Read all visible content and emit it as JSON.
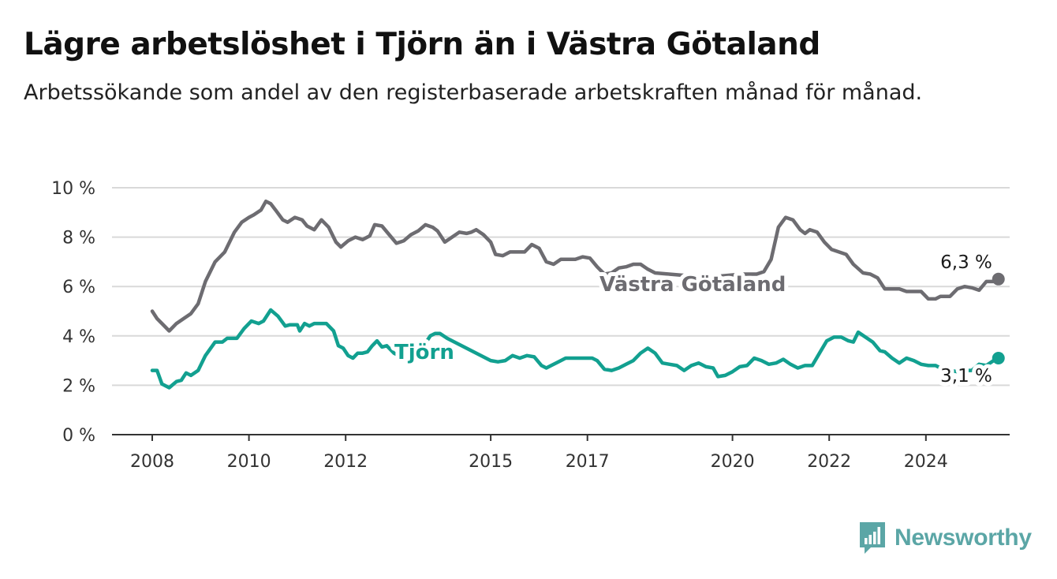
{
  "title": "Lägre arbetslöshet i Tjörn än i Västra Götaland",
  "subtitle": "Arbetssökande som andel av den registerbaserade arbetskraften månad för månad.",
  "brand": {
    "name": "Newsworthy",
    "icon": "newsworthy-logo-icon",
    "color": "#5ba6a6"
  },
  "colors": {
    "vastra_gotaland": "#6d6c71",
    "tjorn": "#12a090",
    "grid": "#d9d9d9",
    "axis": "#333333"
  },
  "chart_data": {
    "type": "line",
    "title": "Lägre arbetslöshet i Tjörn än i Västra Götaland",
    "subtitle": "Arbetssökande som andel av den registerbaserade arbetskraften månad för månad.",
    "xlabel": "",
    "ylabel": "",
    "y_unit": "%",
    "ylim": [
      0,
      10
    ],
    "y_ticks": [
      0,
      2,
      4,
      6,
      8,
      10
    ],
    "y_tick_labels": [
      "0 %",
      "2 %",
      "4 %",
      "6 %",
      "8 %",
      "10 %"
    ],
    "x_ticks": [
      2008,
      2010,
      2012,
      2015,
      2017,
      2020,
      2022,
      2024
    ],
    "x_tick_labels": [
      "2008",
      "2010",
      "2012",
      "2015",
      "2017",
      "2020",
      "2022",
      "2024"
    ],
    "grid": true,
    "legend": "direct labels on lines",
    "series": [
      {
        "name": "Västra Götaland",
        "color": "#6d6c71",
        "end_label": "6,3 %",
        "points": [
          [
            2008.0,
            5.0
          ],
          [
            2008.1,
            4.7
          ],
          [
            2008.2,
            4.5
          ],
          [
            2008.35,
            4.2
          ],
          [
            2008.5,
            4.5
          ],
          [
            2008.65,
            4.7
          ],
          [
            2008.8,
            4.9
          ],
          [
            2008.95,
            5.3
          ],
          [
            2009.1,
            6.2
          ],
          [
            2009.3,
            7.0
          ],
          [
            2009.5,
            7.4
          ],
          [
            2009.7,
            8.2
          ],
          [
            2009.85,
            8.6
          ],
          [
            2010.0,
            8.8
          ],
          [
            2010.1,
            8.9
          ],
          [
            2010.25,
            9.1
          ],
          [
            2010.35,
            9.45
          ],
          [
            2010.45,
            9.35
          ],
          [
            2010.55,
            9.1
          ],
          [
            2010.7,
            8.7
          ],
          [
            2010.8,
            8.6
          ],
          [
            2010.95,
            8.8
          ],
          [
            2011.1,
            8.7
          ],
          [
            2011.2,
            8.45
          ],
          [
            2011.35,
            8.3
          ],
          [
            2011.5,
            8.7
          ],
          [
            2011.65,
            8.4
          ],
          [
            2011.8,
            7.8
          ],
          [
            2011.9,
            7.6
          ],
          [
            2012.05,
            7.85
          ],
          [
            2012.2,
            8.0
          ],
          [
            2012.35,
            7.9
          ],
          [
            2012.5,
            8.05
          ],
          [
            2012.6,
            8.5
          ],
          [
            2012.75,
            8.45
          ],
          [
            2012.9,
            8.1
          ],
          [
            2013.05,
            7.75
          ],
          [
            2013.2,
            7.85
          ],
          [
            2013.35,
            8.1
          ],
          [
            2013.5,
            8.25
          ],
          [
            2013.65,
            8.5
          ],
          [
            2013.8,
            8.4
          ],
          [
            2013.9,
            8.25
          ],
          [
            2014.05,
            7.8
          ],
          [
            2014.2,
            8.0
          ],
          [
            2014.35,
            8.2
          ],
          [
            2014.5,
            8.15
          ],
          [
            2014.6,
            8.2
          ],
          [
            2014.7,
            8.3
          ],
          [
            2014.85,
            8.1
          ],
          [
            2015.0,
            7.8
          ],
          [
            2015.1,
            7.3
          ],
          [
            2015.25,
            7.25
          ],
          [
            2015.4,
            7.4
          ],
          [
            2015.55,
            7.4
          ],
          [
            2015.7,
            7.4
          ],
          [
            2015.85,
            7.7
          ],
          [
            2016.0,
            7.55
          ],
          [
            2016.15,
            7.0
          ],
          [
            2016.3,
            6.9
          ],
          [
            2016.45,
            7.1
          ],
          [
            2016.6,
            7.1
          ],
          [
            2016.75,
            7.1
          ],
          [
            2016.9,
            7.2
          ],
          [
            2017.05,
            7.15
          ],
          [
            2017.2,
            6.8
          ],
          [
            2017.35,
            6.5
          ],
          [
            2017.5,
            6.55
          ],
          [
            2017.65,
            6.75
          ],
          [
            2017.8,
            6.8
          ],
          [
            2017.95,
            6.9
          ],
          [
            2018.1,
            6.9
          ],
          [
            2018.25,
            6.7
          ],
          [
            2018.4,
            6.55
          ],
          [
            2019.0,
            6.45
          ],
          [
            2019.6,
            6.4
          ],
          [
            2020.2,
            6.5
          ],
          [
            2020.5,
            6.5
          ],
          [
            2020.65,
            6.6
          ],
          [
            2020.8,
            7.1
          ],
          [
            2020.95,
            8.4
          ],
          [
            2021.1,
            8.8
          ],
          [
            2021.25,
            8.7
          ],
          [
            2021.4,
            8.3
          ],
          [
            2021.5,
            8.15
          ],
          [
            2021.6,
            8.3
          ],
          [
            2021.75,
            8.2
          ],
          [
            2021.9,
            7.8
          ],
          [
            2022.05,
            7.5
          ],
          [
            2022.2,
            7.4
          ],
          [
            2022.35,
            7.3
          ],
          [
            2022.5,
            6.9
          ],
          [
            2022.7,
            6.55
          ],
          [
            2022.85,
            6.5
          ],
          [
            2023.0,
            6.35
          ],
          [
            2023.15,
            5.9
          ],
          [
            2023.3,
            5.9
          ],
          [
            2023.45,
            5.9
          ],
          [
            2023.6,
            5.8
          ],
          [
            2023.75,
            5.8
          ],
          [
            2023.9,
            5.8
          ],
          [
            2024.05,
            5.5
          ],
          [
            2024.2,
            5.5
          ],
          [
            2024.3,
            5.6
          ],
          [
            2024.5,
            5.6
          ],
          [
            2024.65,
            5.9
          ],
          [
            2024.8,
            6.0
          ],
          [
            2024.95,
            5.95
          ],
          [
            2025.1,
            5.85
          ],
          [
            2025.25,
            6.2
          ],
          [
            2025.4,
            6.2
          ],
          [
            2025.5,
            6.3
          ]
        ]
      },
      {
        "name": "Tjörn",
        "color": "#12a090",
        "end_label": "3,1 %",
        "points": [
          [
            2008.0,
            2.6
          ],
          [
            2008.1,
            2.6
          ],
          [
            2008.2,
            2.05
          ],
          [
            2008.35,
            1.9
          ],
          [
            2008.5,
            2.15
          ],
          [
            2008.6,
            2.2
          ],
          [
            2008.7,
            2.5
          ],
          [
            2008.8,
            2.4
          ],
          [
            2008.95,
            2.6
          ],
          [
            2009.1,
            3.2
          ],
          [
            2009.3,
            3.75
          ],
          [
            2009.45,
            3.75
          ],
          [
            2009.55,
            3.9
          ],
          [
            2009.75,
            3.9
          ],
          [
            2009.9,
            4.3
          ],
          [
            2010.05,
            4.6
          ],
          [
            2010.2,
            4.5
          ],
          [
            2010.3,
            4.6
          ],
          [
            2010.45,
            5.05
          ],
          [
            2010.6,
            4.8
          ],
          [
            2010.75,
            4.4
          ],
          [
            2010.85,
            4.45
          ],
          [
            2011.0,
            4.45
          ],
          [
            2011.05,
            4.2
          ],
          [
            2011.15,
            4.5
          ],
          [
            2011.25,
            4.4
          ],
          [
            2011.35,
            4.5
          ],
          [
            2011.5,
            4.5
          ],
          [
            2011.6,
            4.5
          ],
          [
            2011.75,
            4.2
          ],
          [
            2011.85,
            3.6
          ],
          [
            2011.95,
            3.5
          ],
          [
            2012.05,
            3.2
          ],
          [
            2012.15,
            3.1
          ],
          [
            2012.25,
            3.3
          ],
          [
            2012.35,
            3.3
          ],
          [
            2012.45,
            3.35
          ],
          [
            2012.55,
            3.6
          ],
          [
            2012.65,
            3.8
          ],
          [
            2012.75,
            3.55
          ],
          [
            2012.85,
            3.6
          ],
          [
            2013.0,
            3.3
          ],
          [
            2013.1,
            3.2
          ],
          [
            2013.2,
            3.4
          ],
          [
            2013.35,
            3.15
          ],
          [
            2013.5,
            3.5
          ],
          [
            2013.65,
            3.7
          ],
          [
            2013.75,
            4.0
          ],
          [
            2013.85,
            4.1
          ],
          [
            2013.95,
            4.1
          ],
          [
            2014.1,
            3.9
          ],
          [
            2015.0,
            3.0
          ],
          [
            2015.15,
            2.95
          ],
          [
            2015.3,
            3.0
          ],
          [
            2015.45,
            3.2
          ],
          [
            2015.6,
            3.1
          ],
          [
            2015.75,
            3.2
          ],
          [
            2015.9,
            3.15
          ],
          [
            2016.05,
            2.8
          ],
          [
            2016.15,
            2.7
          ],
          [
            2016.25,
            2.8
          ],
          [
            2016.4,
            2.95
          ],
          [
            2016.55,
            3.1
          ],
          [
            2016.7,
            3.1
          ],
          [
            2016.85,
            3.1
          ],
          [
            2017.0,
            3.1
          ],
          [
            2017.1,
            3.1
          ],
          [
            2017.2,
            3.0
          ],
          [
            2017.35,
            2.65
          ],
          [
            2017.5,
            2.6
          ],
          [
            2017.65,
            2.7
          ],
          [
            2017.8,
            2.85
          ],
          [
            2017.95,
            3.0
          ],
          [
            2018.1,
            3.3
          ],
          [
            2018.25,
            3.5
          ],
          [
            2018.4,
            3.3
          ],
          [
            2018.55,
            2.9
          ],
          [
            2018.7,
            2.85
          ],
          [
            2018.85,
            2.8
          ],
          [
            2019.0,
            2.6
          ],
          [
            2019.15,
            2.8
          ],
          [
            2019.3,
            2.9
          ],
          [
            2019.45,
            2.75
          ],
          [
            2019.6,
            2.7
          ],
          [
            2019.7,
            2.35
          ],
          [
            2019.85,
            2.4
          ],
          [
            2020.0,
            2.55
          ],
          [
            2020.15,
            2.75
          ],
          [
            2020.3,
            2.8
          ],
          [
            2020.45,
            3.1
          ],
          [
            2020.6,
            3.0
          ],
          [
            2020.75,
            2.85
          ],
          [
            2020.9,
            2.9
          ],
          [
            2021.05,
            3.05
          ],
          [
            2021.2,
            2.85
          ],
          [
            2021.35,
            2.7
          ],
          [
            2021.5,
            2.8
          ],
          [
            2021.65,
            2.8
          ],
          [
            2021.8,
            3.3
          ],
          [
            2021.95,
            3.8
          ],
          [
            2022.1,
            3.95
          ],
          [
            2022.25,
            3.95
          ],
          [
            2022.4,
            3.8
          ],
          [
            2022.5,
            3.75
          ],
          [
            2022.6,
            4.15
          ],
          [
            2022.75,
            3.95
          ],
          [
            2022.9,
            3.75
          ],
          [
            2023.05,
            3.4
          ],
          [
            2023.15,
            3.35
          ],
          [
            2023.3,
            3.1
          ],
          [
            2023.45,
            2.9
          ],
          [
            2023.6,
            3.1
          ],
          [
            2023.75,
            3.0
          ],
          [
            2023.9,
            2.85
          ],
          [
            2024.05,
            2.8
          ],
          [
            2024.2,
            2.8
          ],
          [
            2024.35,
            2.65
          ],
          [
            2024.5,
            2.6
          ],
          [
            2024.65,
            2.55
          ],
          [
            2024.8,
            2.6
          ],
          [
            2024.95,
            2.6
          ],
          [
            2025.1,
            2.85
          ],
          [
            2025.25,
            2.8
          ],
          [
            2025.4,
            3.0
          ],
          [
            2025.5,
            3.1
          ]
        ]
      }
    ],
    "annotations": [
      {
        "text": "Västra Götaland",
        "series": "Västra Götaland",
        "type": "series-label"
      },
      {
        "text": "Tjörn",
        "series": "Tjörn",
        "type": "series-label"
      },
      {
        "text": "6,3 %",
        "series": "Västra Götaland",
        "type": "end-value"
      },
      {
        "text": "3,1 %",
        "series": "Tjörn",
        "type": "end-value"
      }
    ]
  }
}
